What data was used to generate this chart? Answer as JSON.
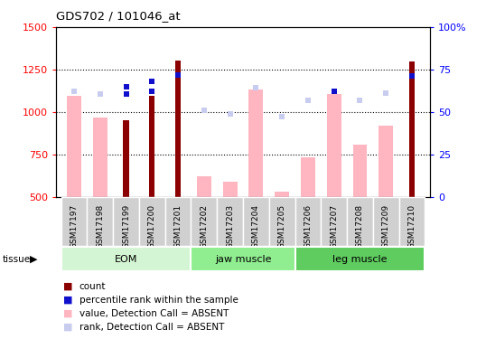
{
  "title": "GDS702 / 101046_at",
  "samples": [
    "GSM17197",
    "GSM17198",
    "GSM17199",
    "GSM17200",
    "GSM17201",
    "GSM17202",
    "GSM17203",
    "GSM17204",
    "GSM17205",
    "GSM17206",
    "GSM17207",
    "GSM17208",
    "GSM17209",
    "GSM17210"
  ],
  "count_values": [
    null,
    null,
    950,
    1095,
    1305,
    null,
    null,
    null,
    null,
    null,
    null,
    null,
    null,
    1295
  ],
  "value_absent": [
    1095,
    965,
    null,
    null,
    null,
    620,
    590,
    1130,
    530,
    730,
    1105,
    805,
    920,
    null
  ],
  "rank_absent_light": [
    1120,
    1105,
    null,
    null,
    null,
    1010,
    990,
    1145,
    970,
    1070,
    null,
    1070,
    1110,
    null
  ],
  "rank_absent_dark": [
    null,
    null,
    1105,
    1120,
    null,
    null,
    null,
    null,
    null,
    null,
    1120,
    null,
    null,
    null
  ],
  "percentile_rank": [
    null,
    null,
    65,
    68,
    72,
    null,
    null,
    null,
    null,
    null,
    null,
    null,
    null,
    71
  ],
  "tissue_groups": [
    {
      "label": "EOM",
      "start": 0,
      "end": 5,
      "color_light": "#d4f5d4",
      "color_dark": "#5fcc5f"
    },
    {
      "label": "jaw muscle",
      "start": 5,
      "end": 9,
      "color_light": "#a0e8a0",
      "color_dark": "#3db83d"
    },
    {
      "label": "leg muscle",
      "start": 9,
      "end": 14,
      "color_light": "#5fcc5f",
      "color_dark": "#2da02d"
    }
  ],
  "ylim": [
    500,
    1500
  ],
  "y2lim": [
    0,
    100
  ],
  "yticks": [
    500,
    750,
    1000,
    1250,
    1500
  ],
  "y2ticks": [
    0,
    25,
    50,
    75,
    100
  ],
  "y2ticklabels": [
    "0",
    "25",
    "50",
    "75",
    "100%"
  ],
  "color_count": "#8B0000",
  "color_value_absent": "#FFB6C1",
  "color_rank_absent_light": "#c8ccee",
  "color_rank_absent_dark": "#1010cc",
  "color_percentile": "#1010cc",
  "bg_color": "#d0d0d0",
  "legend_labels": [
    "count",
    "percentile rank within the sample",
    "value, Detection Call = ABSENT",
    "rank, Detection Call = ABSENT"
  ],
  "legend_colors": [
    "#8B0000",
    "#1010cc",
    "#FFB6C1",
    "#c8ccee"
  ]
}
